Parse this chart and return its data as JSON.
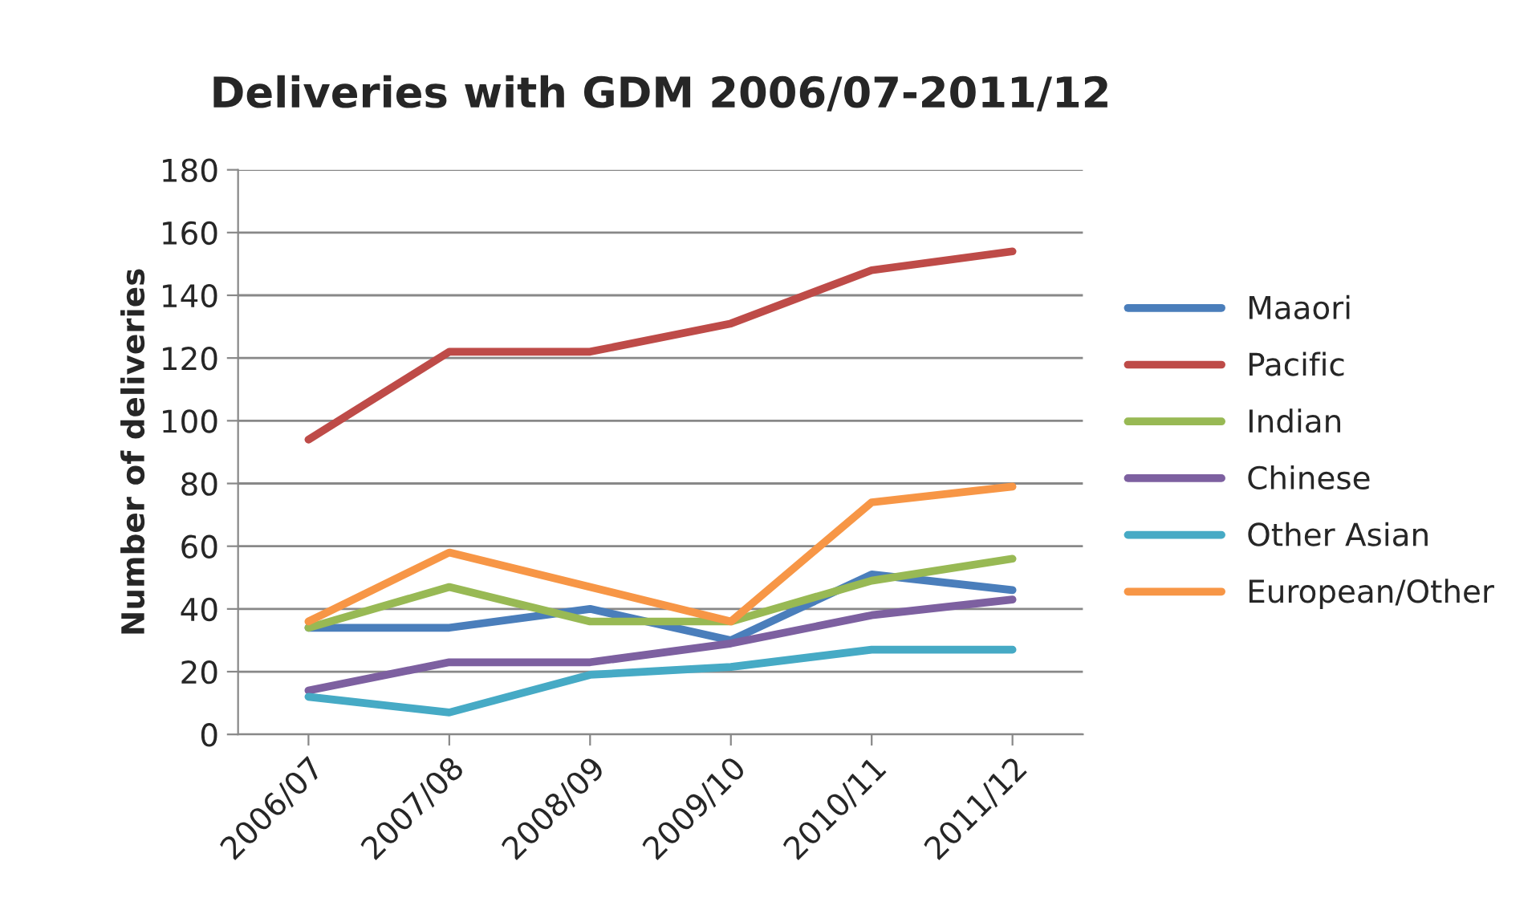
{
  "chart_data": {
    "type": "line",
    "title": "Deliveries with GDM 2006/07-2011/12",
    "ylabel": "Number of deliveries",
    "categories": [
      "2006/07",
      "2007/08",
      "2008/09",
      "2009/10",
      "2010/11",
      "2011/12"
    ],
    "series": [
      {
        "name": "Maaori",
        "color": "#4a7ebb",
        "values": [
          34,
          34,
          40,
          30,
          51,
          46
        ]
      },
      {
        "name": "Pacific",
        "color": "#be4b48",
        "values": [
          94,
          122,
          122,
          131,
          148,
          154
        ]
      },
      {
        "name": "Indian",
        "color": "#98b954",
        "values": [
          34,
          47,
          36,
          36,
          49,
          56
        ]
      },
      {
        "name": "Chinese",
        "color": "#7d60a0",
        "values": [
          14,
          23,
          23,
          29,
          38,
          43
        ]
      },
      {
        "name": "Other Asian",
        "color": "#46aac5",
        "values": [
          12,
          7,
          19,
          21.5,
          27,
          27
        ]
      },
      {
        "name": "European/Other",
        "color": "#f79646",
        "values": [
          36,
          58,
          47,
          36,
          74,
          79
        ]
      }
    ],
    "ylim": [
      0,
      180
    ],
    "yticks": [
      0,
      20,
      40,
      60,
      80,
      100,
      120,
      140,
      160,
      180
    ],
    "grid": "y",
    "legend": "right",
    "marker": "none"
  }
}
